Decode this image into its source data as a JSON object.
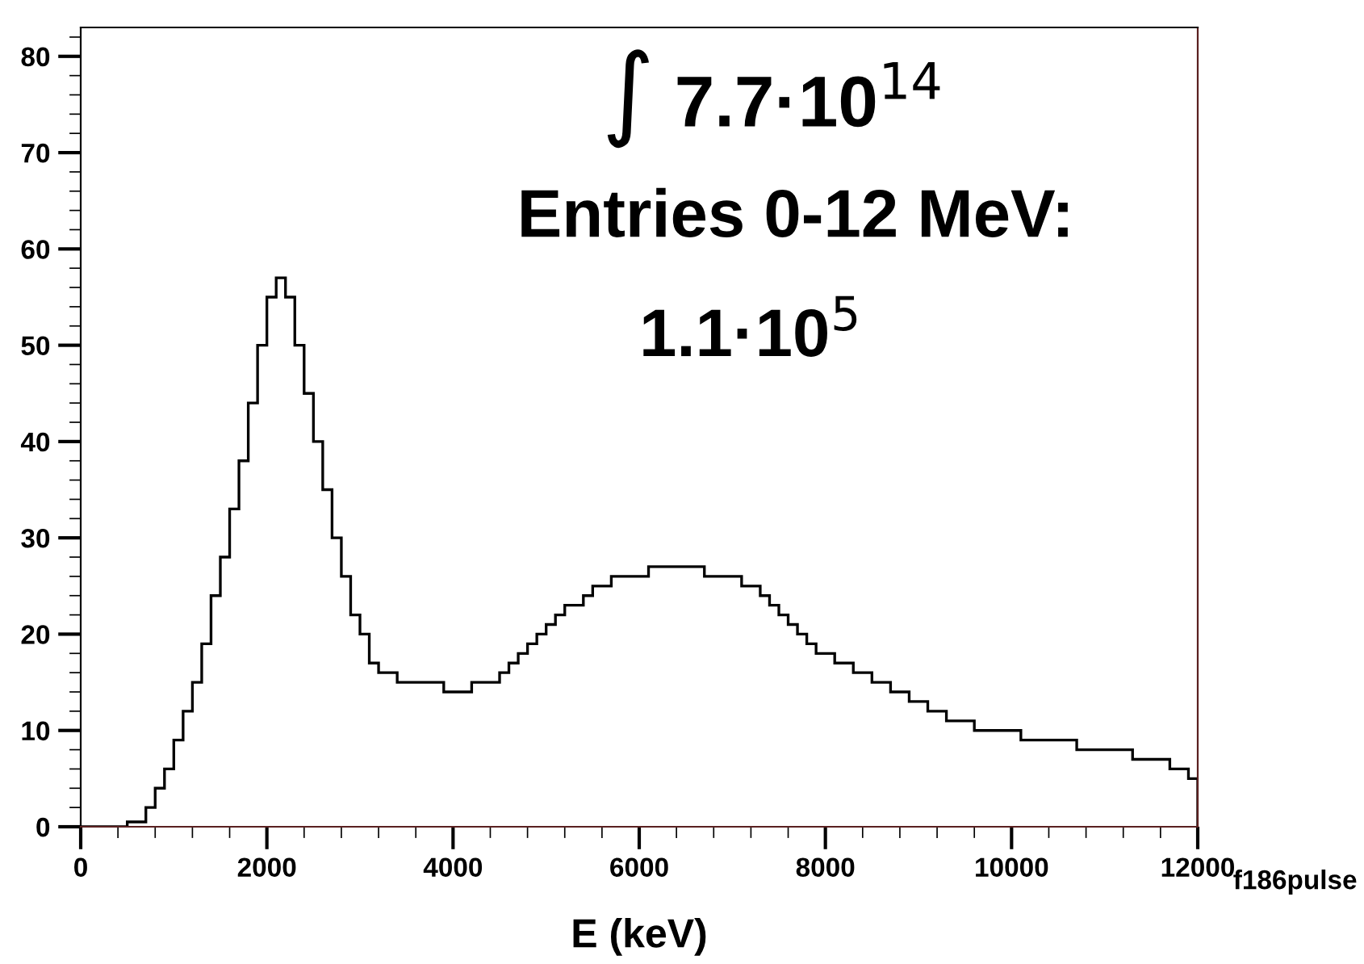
{
  "chart_data": {
    "type": "histogram",
    "xlabel": "E (keV)",
    "annotations": [
      "∫ 7.7·10$^{14}$",
      "Entries 0-12 MeV:",
      "1.1·10$^{5}$",
      "f186pulse"
    ],
    "bins": [
      0,
      100,
      200,
      300,
      400,
      500,
      600,
      700,
      800,
      900,
      1000,
      1100,
      1200,
      1300,
      1400,
      1500,
      1600,
      1700,
      1800,
      1900,
      2000,
      2100,
      2200,
      2300,
      2400,
      2500,
      2600,
      2700,
      2800,
      2900,
      3000,
      3100,
      3200,
      3300,
      3400,
      3500,
      3600,
      3700,
      3800,
      3900,
      4000,
      4100,
      4200,
      4300,
      4400,
      4500,
      4600,
      4700,
      4800,
      4900,
      5000,
      5100,
      5200,
      5300,
      5400,
      5500,
      5600,
      5700,
      5800,
      5900,
      6000,
      6100,
      6200,
      6300,
      6400,
      6500,
      6600,
      6700,
      6800,
      6900,
      7000,
      7100,
      7200,
      7300,
      7400,
      7500,
      7600,
      7700,
      7800,
      7900,
      8000,
      8100,
      8200,
      8300,
      8400,
      8500,
      8600,
      8700,
      8800,
      8900,
      9000,
      9100,
      9200,
      9300,
      9400,
      9500,
      9600,
      9700,
      9800,
      9900,
      10000,
      10100,
      10200,
      10300,
      10400,
      10500,
      10600,
      10700,
      10800,
      10900,
      11000,
      11100,
      11200,
      11300,
      11400,
      11500,
      11600,
      11700,
      11800,
      11900,
      12000
    ],
    "values": [
      0,
      0,
      0,
      0,
      0,
      0.5,
      0.5,
      2,
      4,
      6,
      9,
      12,
      15,
      19,
      24,
      28,
      33,
      38,
      44,
      50,
      55,
      57,
      55,
      50,
      45,
      40,
      35,
      30,
      26,
      22,
      20,
      17,
      16,
      16,
      15,
      15,
      15,
      15,
      15,
      14,
      14,
      14,
      15,
      15,
      15,
      16,
      17,
      18,
      19,
      20,
      21,
      22,
      23,
      23,
      24,
      25,
      25,
      26,
      26,
      26,
      26,
      27,
      27,
      27,
      27,
      27,
      27,
      26,
      26,
      26,
      26,
      25,
      25,
      24,
      23,
      22,
      21,
      20,
      19,
      18,
      18,
      17,
      17,
      16,
      16,
      15,
      15,
      14,
      14,
      13,
      13,
      12,
      12,
      11,
      11,
      11,
      10,
      10,
      10,
      10,
      10,
      9,
      9,
      9,
      9,
      9,
      9,
      8,
      8,
      8,
      8,
      8,
      8,
      7,
      7,
      7,
      7,
      6,
      6,
      5
    ],
    "color": "#000000",
    "xlim": [
      0,
      12000
    ],
    "xticks": [
      0,
      2000,
      4000,
      6000,
      8000,
      10000,
      12000
    ],
    "ylim": [
      0,
      83
    ],
    "yticks": [
      0,
      10,
      20,
      30,
      40,
      50,
      60,
      70,
      80
    ]
  }
}
